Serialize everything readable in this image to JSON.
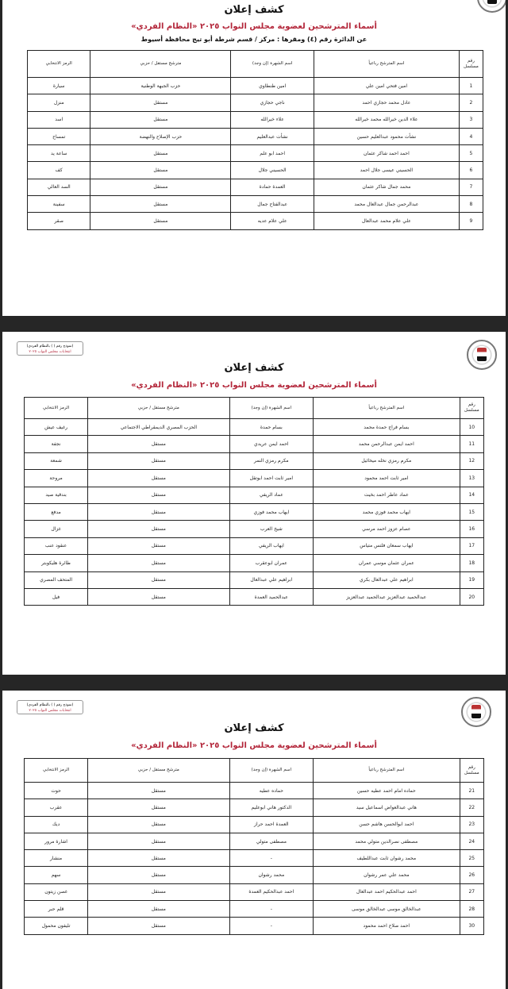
{
  "document": {
    "title": "كشف إعلان",
    "subtitle": "أسماء المترشحين لعضوية مجلس النواب ٢٠٢٥ «النظام الفردي»",
    "district_line": "عن الدائرة رقم (٤)   ومقرها : مركز / قسم شرطة  أبو تيج   محافظة  أسيوط",
    "form_badge": {
      "line1": "(نموذج رقم ( ) بالنظام الفردي)",
      "line2": "انتخابات مجلس النواب ٢٠٢٥"
    },
    "columns": [
      "رقم مسلسل",
      "اسم المترشح رباعياً",
      "اسم الشهرة (إن وجد)",
      "مترشح مستقل / حزبي",
      "الرمز الانتخابي"
    ],
    "colors": {
      "subtitle": "#b3263a",
      "border": "#222222"
    }
  },
  "pages": [
    {
      "rows": [
        [
          "1",
          "امين فتحي امين علي",
          "امين طنطاوي",
          "حزب الجبهة الوطنية",
          "سيارة"
        ],
        [
          "2",
          "عادل محمد حجازي احمد",
          "ناجي حجازي",
          "مستقل",
          "منزل"
        ],
        [
          "3",
          "علاء الدين خيرالله محمد خيرالله",
          "علاء خيرالله",
          "مستقل",
          "اسد"
        ],
        [
          "4",
          "نشأت محمود عبدالعليم حسين",
          "نشأت عبدالعليم",
          "حزب الإصلاح والنهضة",
          "تمساح"
        ],
        [
          "5",
          "احمد احمد شاكر عثمان",
          "احمد ابو علم",
          "مستقل",
          "ساعة يد"
        ],
        [
          "6",
          "الحسيني عيسى جلال احمد",
          "الحسيني جلال",
          "مستقل",
          "كف"
        ],
        [
          "7",
          "محمد جمال شاكر عثمان",
          "العمدة حمادة",
          "مستقل",
          "السد العالي"
        ],
        [
          "8",
          "عبدالرحمن جمال عبدالعال محمد",
          "عبدالفتاح جمال",
          "مستقل",
          "سفينة"
        ],
        [
          "9",
          "علي علام محمد عبدالعال",
          "علي علام عديه",
          "مستقل",
          "صقر"
        ]
      ]
    },
    {
      "rows": [
        [
          "10",
          "بسام فراج حمدة محمد",
          "بسام حمدة",
          "الحزب المصري الديمقراطي الاجتماعي",
          "رغيف عيش"
        ],
        [
          "11",
          "احمد ايمن عبدالرحمن محمد",
          "احمد ايمن عريدي",
          "مستقل",
          "نجفة"
        ],
        [
          "12",
          "مكرم رمزي نخله ميخائيل",
          "مكرم رمزي النمر",
          "مستقل",
          "شمعة"
        ],
        [
          "13",
          "امير ثابت احمد محمود",
          "امير ثابت احمد ابوتقل",
          "مستقل",
          "مروحة"
        ],
        [
          "14",
          "عماد عاطر احمد بخيت",
          "عماد الريفي",
          "مستقل",
          "بندقية صيد"
        ],
        [
          "15",
          "ايهاب محمد فوزي محمد",
          "ايهاب محمد فوزي",
          "مستقل",
          "مدفع"
        ],
        [
          "16",
          "عصام عزوز احمد مرسي",
          "شيخ العرب",
          "مستقل",
          "غزال"
        ],
        [
          "17",
          "ايهاب سمعان فلتس متياس",
          "ايهاب الريفي",
          "مستقل",
          "عنقود عنب"
        ],
        [
          "18",
          "عمران عثمان موسي عمران",
          "عمران ابوعقرب",
          "مستقل",
          "طائرة هليكوبتر"
        ],
        [
          "19",
          "ابراهيم علي عبدالعال بكري",
          "ابراهيم علي عبدالعال",
          "مستقل",
          "المتحف المصري"
        ],
        [
          "20",
          "عبدالحميد عبدالعزيز عبدالحميد عبدالعزيز",
          "عبدالحميد العمدة",
          "مستقل",
          "فيل"
        ]
      ]
    },
    {
      "rows": [
        [
          "21",
          "حماده امام احمد عطيه حسين",
          "حماده عطيه",
          "مستقل",
          "حوت"
        ],
        [
          "22",
          "هاني عبدالعواض اسماعيل سيد",
          "الدكتور هاني ابوعليم",
          "مستقل",
          "عقرب"
        ],
        [
          "23",
          "احمد ابوالحسن هاشم حسن",
          "العمدة احمد حراز",
          "مستقل",
          "ديك"
        ],
        [
          "24",
          "مصطفى نصرالدين متولي محمد",
          "مصطفى متولي",
          "مستقل",
          "اشارة مرور"
        ],
        [
          "25",
          "محمد رشوان ثابت عبداللطيف",
          "-",
          "مستقل",
          "منشار"
        ],
        [
          "26",
          "محمد علي عمر رشوان",
          "محمد رشوان",
          "مستقل",
          "سهم"
        ],
        [
          "27",
          "احمد عبدالحكيم احمد عبدالعال",
          "احمد عبدالحكيم العمدة",
          "مستقل",
          "غصن زيتون"
        ],
        [
          "28",
          "عبدالخالق موسى عبدالخالق موسى",
          "-",
          "مستقل",
          "قلم حبر"
        ],
        [
          "30",
          "احمد صلاح احمد محمود",
          "-",
          "مستقل",
          "تليفون محمول"
        ]
      ]
    }
  ]
}
